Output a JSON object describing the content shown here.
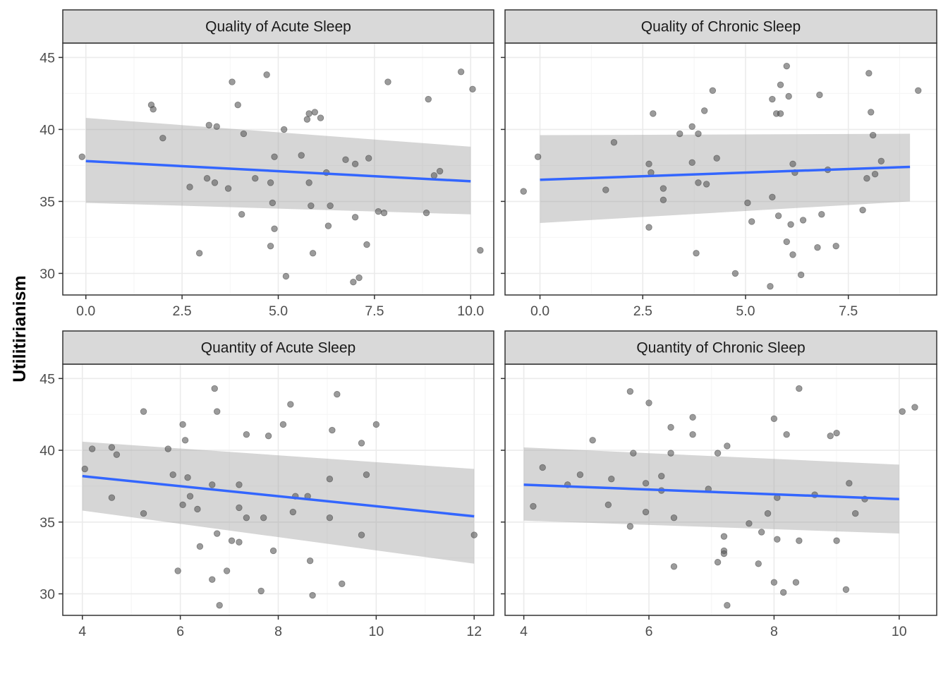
{
  "ylabel": "Utilitirianism",
  "colors": {
    "point": "#595959",
    "line": "#3366FF",
    "band": "#999999",
    "strip": "#d9d9d9",
    "grid_major": "#ebebeb",
    "grid_minor": "#f5f5f5",
    "border": "#333333"
  },
  "chart_data": [
    {
      "type": "scatter",
      "title": "Quality of Acute Sleep",
      "xlim": [
        -0.6,
        10.6
      ],
      "ylim": [
        28.5,
        46
      ],
      "x_ticks": [
        "0.0",
        "2.5",
        "5.0",
        "7.5",
        "10.0"
      ],
      "x_tick_values": [
        0,
        2.5,
        5,
        7.5,
        10
      ],
      "y_ticks": [
        "30",
        "35",
        "40",
        "45"
      ],
      "y_tick_values": [
        30,
        35,
        40,
        45
      ],
      "smooth": {
        "x": [
          0,
          10
        ],
        "y": [
          37.8,
          36.4
        ],
        "lower": [
          34.9,
          34.1
        ],
        "upper": [
          40.8,
          38.8
        ]
      },
      "points": [
        [
          -0.1,
          38.1
        ],
        [
          1.7,
          41.7
        ],
        [
          1.75,
          41.4
        ],
        [
          2.0,
          39.4
        ],
        [
          2.7,
          36.0
        ],
        [
          2.95,
          31.4
        ],
        [
          3.15,
          36.6
        ],
        [
          3.2,
          40.3
        ],
        [
          3.35,
          36.3
        ],
        [
          3.4,
          40.2
        ],
        [
          3.7,
          35.9
        ],
        [
          3.8,
          43.3
        ],
        [
          3.95,
          41.7
        ],
        [
          4.05,
          34.1
        ],
        [
          4.1,
          39.7
        ],
        [
          4.4,
          36.6
        ],
        [
          4.7,
          43.8
        ],
        [
          4.8,
          31.9
        ],
        [
          4.8,
          36.3
        ],
        [
          4.85,
          34.9
        ],
        [
          4.9,
          38.1
        ],
        [
          4.9,
          33.1
        ],
        [
          5.15,
          40.0
        ],
        [
          5.2,
          29.8
        ],
        [
          5.6,
          38.2
        ],
        [
          5.75,
          40.7
        ],
        [
          5.8,
          41.1
        ],
        [
          5.8,
          36.3
        ],
        [
          5.85,
          34.7
        ],
        [
          5.9,
          31.4
        ],
        [
          5.95,
          41.2
        ],
        [
          6.1,
          40.8
        ],
        [
          6.25,
          37.0
        ],
        [
          6.3,
          33.3
        ],
        [
          6.35,
          34.7
        ],
        [
          6.75,
          37.9
        ],
        [
          6.95,
          29.4
        ],
        [
          7.0,
          33.9
        ],
        [
          7.0,
          37.6
        ],
        [
          7.1,
          29.7
        ],
        [
          7.3,
          32.0
        ],
        [
          7.35,
          38.0
        ],
        [
          7.6,
          34.3
        ],
        [
          7.75,
          34.2
        ],
        [
          7.85,
          43.3
        ],
        [
          8.85,
          34.2
        ],
        [
          8.9,
          42.1
        ],
        [
          9.05,
          36.8
        ],
        [
          9.2,
          37.1
        ],
        [
          9.75,
          44.0
        ],
        [
          10.05,
          42.8
        ],
        [
          10.25,
          31.6
        ]
      ]
    },
    {
      "type": "scatter",
      "title": "Quality of Chronic Sleep",
      "xlim": [
        -0.85,
        9.65
      ],
      "ylim": [
        28.5,
        46
      ],
      "x_ticks": [
        "0.0",
        "2.5",
        "5.0",
        "7.5"
      ],
      "x_tick_values": [
        0,
        2.5,
        5,
        7.5
      ],
      "y_ticks": [
        "30",
        "35",
        "40",
        "45"
      ],
      "y_tick_values": [
        30,
        35,
        40,
        45
      ],
      "smooth": {
        "x": [
          0,
          9
        ],
        "y": [
          36.5,
          37.4
        ],
        "lower": [
          33.5,
          35.0
        ],
        "upper": [
          39.6,
          39.7
        ]
      },
      "points": [
        [
          -0.4,
          35.7
        ],
        [
          -0.05,
          38.1
        ],
        [
          1.6,
          35.8
        ],
        [
          1.8,
          39.1
        ],
        [
          2.65,
          37.6
        ],
        [
          2.65,
          33.2
        ],
        [
          2.7,
          37.0
        ],
        [
          2.75,
          41.1
        ],
        [
          3.0,
          35.9
        ],
        [
          3.0,
          35.1
        ],
        [
          3.4,
          39.7
        ],
        [
          3.7,
          37.7
        ],
        [
          3.7,
          40.2
        ],
        [
          3.8,
          31.4
        ],
        [
          3.85,
          39.7
        ],
        [
          3.85,
          36.3
        ],
        [
          4.0,
          41.3
        ],
        [
          4.05,
          36.2
        ],
        [
          4.2,
          42.7
        ],
        [
          4.3,
          38.0
        ],
        [
          4.75,
          30.0
        ],
        [
          5.05,
          34.9
        ],
        [
          5.15,
          33.6
        ],
        [
          5.6,
          29.1
        ],
        [
          5.65,
          42.1
        ],
        [
          5.65,
          35.3
        ],
        [
          5.75,
          41.1
        ],
        [
          5.8,
          34.0
        ],
        [
          5.85,
          43.1
        ],
        [
          5.85,
          41.1
        ],
        [
          6.0,
          44.4
        ],
        [
          6.0,
          32.2
        ],
        [
          6.05,
          42.3
        ],
        [
          6.1,
          33.4
        ],
        [
          6.15,
          37.6
        ],
        [
          6.15,
          31.3
        ],
        [
          6.2,
          37.0
        ],
        [
          6.35,
          29.9
        ],
        [
          6.4,
          33.7
        ],
        [
          6.75,
          31.8
        ],
        [
          6.8,
          42.4
        ],
        [
          6.85,
          34.1
        ],
        [
          7.0,
          37.2
        ],
        [
          7.2,
          31.9
        ],
        [
          7.85,
          34.4
        ],
        [
          7.95,
          36.6
        ],
        [
          8.0,
          43.9
        ],
        [
          8.05,
          41.2
        ],
        [
          8.1,
          39.6
        ],
        [
          8.15,
          36.9
        ],
        [
          8.3,
          37.8
        ],
        [
          9.2,
          42.7
        ]
      ]
    },
    {
      "type": "scatter",
      "title": "Quantity of Acute Sleep",
      "xlim": [
        3.6,
        12.4
      ],
      "ylim": [
        28.5,
        46
      ],
      "x_ticks": [
        "4",
        "6",
        "8",
        "10",
        "12"
      ],
      "x_tick_values": [
        4,
        6,
        8,
        10,
        12
      ],
      "y_ticks": [
        "30",
        "35",
        "40",
        "45"
      ],
      "y_tick_values": [
        30,
        35,
        40,
        45
      ],
      "smooth": {
        "x": [
          4,
          12
        ],
        "y": [
          38.2,
          35.4
        ],
        "lower": [
          35.8,
          32.1
        ],
        "upper": [
          40.6,
          38.7
        ]
      },
      "points": [
        [
          4.05,
          38.7
        ],
        [
          4.2,
          40.1
        ],
        [
          4.6,
          40.2
        ],
        [
          4.6,
          36.7
        ],
        [
          4.7,
          39.7
        ],
        [
          5.25,
          42.7
        ],
        [
          5.25,
          35.6
        ],
        [
          5.75,
          40.1
        ],
        [
          5.85,
          38.3
        ],
        [
          5.95,
          31.6
        ],
        [
          6.05,
          41.8
        ],
        [
          6.05,
          36.2
        ],
        [
          6.1,
          40.7
        ],
        [
          6.15,
          38.1
        ],
        [
          6.2,
          36.8
        ],
        [
          6.35,
          35.9
        ],
        [
          6.4,
          33.3
        ],
        [
          6.65,
          37.6
        ],
        [
          6.65,
          31.0
        ],
        [
          6.7,
          44.3
        ],
        [
          6.75,
          42.7
        ],
        [
          6.75,
          34.2
        ],
        [
          6.8,
          29.2
        ],
        [
          6.95,
          31.6
        ],
        [
          7.05,
          33.7
        ],
        [
          7.2,
          37.6
        ],
        [
          7.2,
          33.6
        ],
        [
          7.2,
          36.0
        ],
        [
          7.35,
          41.1
        ],
        [
          7.35,
          35.3
        ],
        [
          7.65,
          30.2
        ],
        [
          7.7,
          35.3
        ],
        [
          7.8,
          41.0
        ],
        [
          7.9,
          33.0
        ],
        [
          8.1,
          41.8
        ],
        [
          8.25,
          43.2
        ],
        [
          8.3,
          35.7
        ],
        [
          8.35,
          36.8
        ],
        [
          8.6,
          36.8
        ],
        [
          8.65,
          32.3
        ],
        [
          8.7,
          29.9
        ],
        [
          9.05,
          38.0
        ],
        [
          9.05,
          35.3
        ],
        [
          9.1,
          41.4
        ],
        [
          9.2,
          43.9
        ],
        [
          9.3,
          30.7
        ],
        [
          9.7,
          34.1
        ],
        [
          9.7,
          40.5
        ],
        [
          9.8,
          38.3
        ],
        [
          10.0,
          41.8
        ],
        [
          12.0,
          34.1
        ]
      ]
    },
    {
      "type": "scatter",
      "title": "Quantity of Chronic Sleep",
      "xlim": [
        3.7,
        10.6
      ],
      "ylim": [
        28.5,
        46
      ],
      "x_ticks": [
        "4",
        "6",
        "8",
        "10"
      ],
      "x_tick_values": [
        4,
        6,
        8,
        10
      ],
      "y_ticks": [
        "30",
        "35",
        "40",
        "45"
      ],
      "y_tick_values": [
        30,
        35,
        40,
        45
      ],
      "smooth": {
        "x": [
          4,
          10
        ],
        "y": [
          37.6,
          36.6
        ],
        "lower": [
          35.1,
          34.2
        ],
        "upper": [
          40.2,
          39.0
        ]
      },
      "points": [
        [
          4.15,
          36.1
        ],
        [
          4.3,
          38.8
        ],
        [
          4.7,
          37.6
        ],
        [
          4.9,
          38.3
        ],
        [
          5.1,
          40.7
        ],
        [
          5.35,
          36.2
        ],
        [
          5.4,
          38.0
        ],
        [
          5.7,
          44.1
        ],
        [
          5.75,
          39.8
        ],
        [
          5.7,
          34.7
        ],
        [
          5.95,
          35.7
        ],
        [
          5.95,
          37.7
        ],
        [
          6.0,
          43.3
        ],
        [
          6.2,
          37.2
        ],
        [
          6.2,
          38.2
        ],
        [
          6.35,
          41.6
        ],
        [
          6.35,
          39.8
        ],
        [
          6.4,
          35.3
        ],
        [
          6.4,
          31.9
        ],
        [
          6.7,
          42.3
        ],
        [
          6.7,
          41.1
        ],
        [
          6.95,
          37.3
        ],
        [
          7.1,
          32.2
        ],
        [
          7.1,
          39.8
        ],
        [
          7.2,
          34.0
        ],
        [
          7.2,
          33.0
        ],
        [
          7.2,
          32.8
        ],
        [
          7.25,
          29.2
        ],
        [
          7.25,
          40.3
        ],
        [
          7.6,
          34.9
        ],
        [
          7.75,
          32.1
        ],
        [
          7.8,
          34.3
        ],
        [
          7.9,
          35.6
        ],
        [
          8.0,
          30.8
        ],
        [
          8.0,
          42.2
        ],
        [
          8.05,
          33.8
        ],
        [
          8.05,
          36.7
        ],
        [
          8.15,
          30.1
        ],
        [
          8.2,
          41.1
        ],
        [
          8.35,
          30.8
        ],
        [
          8.4,
          44.3
        ],
        [
          8.4,
          33.7
        ],
        [
          8.65,
          36.9
        ],
        [
          8.9,
          41.0
        ],
        [
          9.0,
          41.2
        ],
        [
          9.0,
          33.7
        ],
        [
          9.15,
          30.3
        ],
        [
          9.2,
          37.7
        ],
        [
          9.3,
          35.6
        ],
        [
          9.45,
          36.6
        ],
        [
          10.05,
          42.7
        ],
        [
          10.25,
          43.0
        ]
      ]
    }
  ]
}
